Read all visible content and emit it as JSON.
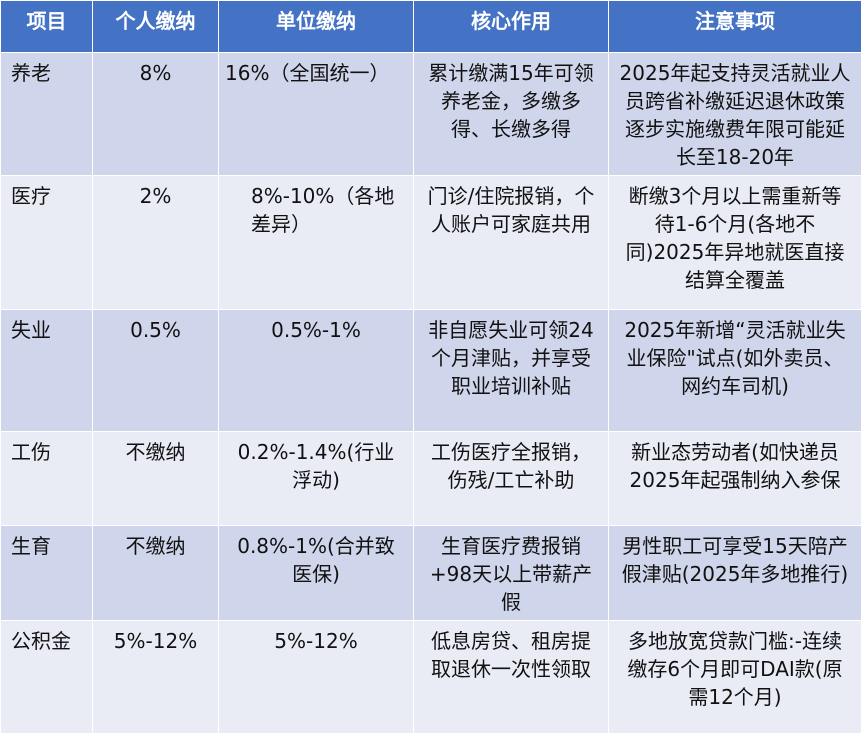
{
  "header": {
    "col_item": "项目",
    "col_person": "个人缴纳",
    "col_unit": "单位缴纳",
    "col_core": "核心作用",
    "col_note": "注意事项"
  },
  "rows": [
    {
      "item": "养老",
      "person": "8%",
      "unit": "16%（全国统一）",
      "core": "累计缴满15年可领养老金，多缴多得、长缴多得",
      "note": "2025年起支持灵活就业人员跨省补缴延迟退休政策逐步实施缴费年限可能延长至18-20年"
    },
    {
      "item": "医疗",
      "person": "2%",
      "unit": "8%-10%（各地差异）",
      "core": "门诊/住院报销，个人账户可家庭共用",
      "note": "断缴3个月以上需重新等待1-6个月(各地不同)2025年异地就医直接结算全覆盖"
    },
    {
      "item": "失业",
      "person": "0.5%",
      "unit": "0.5%-1%",
      "core": "非自愿失业可领24个月津贴，并享受职业培训补贴",
      "note": "2025年新增“灵活就业失业保险\"试点(如外卖员、网约车司机)"
    },
    {
      "item": "工伤",
      "person": "不缴纳",
      "unit": "0.2%-1.4%(行业浮动)",
      "core": "工伤医疗全报销，伤残/工亡补助",
      "note": "新业态劳动者(如快递员2025年起强制纳入参保"
    },
    {
      "item": "生育",
      "person": "不缴纳",
      "unit": "0.8%-1%(合并致医保)",
      "core": "生育医疗费报销+98天以上带薪产假",
      "note": "男性职工可享受15天陪产假津贴(2025年多地推行)"
    },
    {
      "item": "公积金",
      "person": "5%-12%",
      "unit": "5%-12%",
      "core": "低息房贷、租房提取退休一次性领取",
      "note": "多地放宽贷款门槛:-连续缴存6个月即可DAI款(原需12个月)"
    }
  ]
}
